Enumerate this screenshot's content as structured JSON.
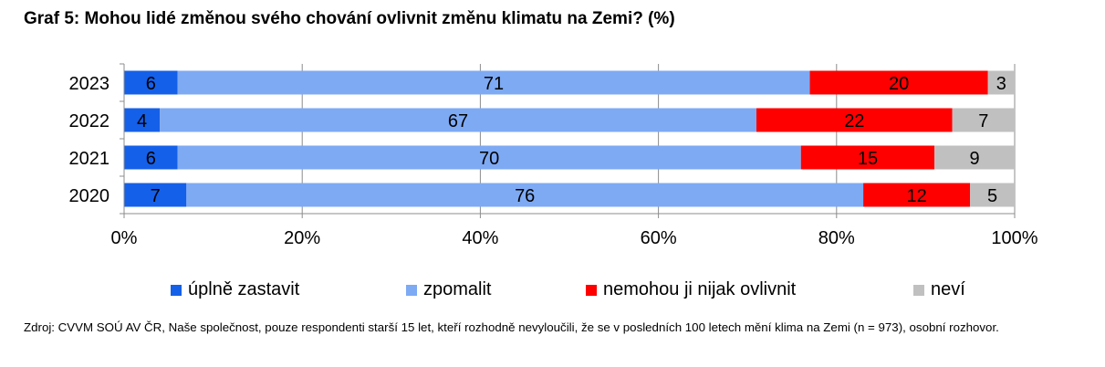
{
  "title": "Graf 5: Mohou lidé změnou svého chování ovlivnit změnu klimatu na Zemi? (%)",
  "source": "Zdroj: CVVM SOÚ AV ČR, Naše společnost, pouze respondenti starší 15 let, kteří rozhodně nevyloučili, že se v posledních 100 letech mění klima na Zemi (n = 973), osobní rozhovor.",
  "chart_data": {
    "type": "bar",
    "orientation": "horizontal",
    "stacked": "percent",
    "categories": [
      "2023",
      "2022",
      "2021",
      "2020"
    ],
    "series": [
      {
        "name": "úplně zastavit",
        "color": "#1560e8",
        "values": [
          6,
          4,
          6,
          7
        ]
      },
      {
        "name": "zpomalit",
        "color": "#7eaaf4",
        "values": [
          71,
          67,
          70,
          76
        ]
      },
      {
        "name": "nemohou ji nijak ovlivnit",
        "color": "#ff0000",
        "values": [
          20,
          22,
          15,
          12
        ]
      },
      {
        "name": "neví",
        "color": "#c0c0c0",
        "values": [
          3,
          7,
          9,
          5
        ]
      }
    ],
    "xticks": [
      "0%",
      "20%",
      "40%",
      "60%",
      "80%",
      "100%"
    ],
    "xlim": [
      0,
      100
    ],
    "grid": true,
    "legend": "bottom"
  }
}
